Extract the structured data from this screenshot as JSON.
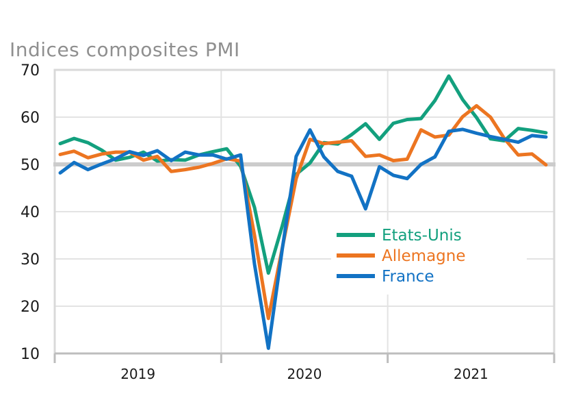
{
  "chart_data": {
    "type": "line",
    "title": "Indices composites PMI",
    "xlabel": "",
    "ylabel": "",
    "ylim": [
      10,
      70
    ],
    "yticks": [
      10,
      20,
      30,
      40,
      50,
      60,
      70
    ],
    "x_categories": [
      "2019",
      "2020",
      "2021"
    ],
    "months": [
      "2019-01",
      "2019-02",
      "2019-03",
      "2019-04",
      "2019-05",
      "2019-06",
      "2019-07",
      "2019-08",
      "2019-09",
      "2019-10",
      "2019-11",
      "2019-12",
      "2020-01",
      "2020-02",
      "2020-03",
      "2020-04",
      "2020-05",
      "2020-06",
      "2020-07",
      "2020-08",
      "2020-09",
      "2020-10",
      "2020-11",
      "2020-12",
      "2021-01",
      "2021-02",
      "2021-03",
      "2021-04",
      "2021-05",
      "2021-06",
      "2021-07",
      "2021-08",
      "2021-09",
      "2021-10",
      "2021-11",
      "2021-12"
    ],
    "reference_line": 50,
    "grid": true,
    "legend_position": "center-right",
    "series": [
      {
        "name": "Etats-Unis",
        "color": "#13a07e",
        "values": [
          54.4,
          55.5,
          54.6,
          53.0,
          50.9,
          51.5,
          52.6,
          50.7,
          51.0,
          50.9,
          52.0,
          52.7,
          53.3,
          49.6,
          40.9,
          27.0,
          37.0,
          47.9,
          50.3,
          54.6,
          54.3,
          56.3,
          58.6,
          55.3,
          58.7,
          59.5,
          59.7,
          63.5,
          68.7,
          63.7,
          59.9,
          55.4,
          55.0,
          57.6,
          57.2,
          56.7
        ]
      },
      {
        "name": "Allemagne",
        "color": "#ec7521",
        "values": [
          52.1,
          52.8,
          51.4,
          52.2,
          52.6,
          52.6,
          50.9,
          51.7,
          48.5,
          48.9,
          49.4,
          50.2,
          51.2,
          50.7,
          35.0,
          17.4,
          32.3,
          47.0,
          55.3,
          54.4,
          54.7,
          55.0,
          51.7,
          52.0,
          50.8,
          51.1,
          57.3,
          55.8,
          56.2,
          60.1,
          62.4,
          60.0,
          55.5,
          52.0,
          52.2,
          49.9
        ]
      },
      {
        "name": "France",
        "color": "#1272c4",
        "values": [
          48.2,
          50.4,
          48.9,
          50.1,
          51.2,
          52.7,
          51.9,
          52.9,
          50.8,
          52.6,
          52.0,
          52.0,
          51.1,
          52.0,
          28.9,
          11.1,
          32.1,
          51.7,
          57.3,
          51.6,
          48.5,
          47.5,
          40.6,
          49.5,
          47.7,
          47.0,
          50.0,
          51.6,
          57.0,
          57.4,
          56.6,
          55.9,
          55.3,
          54.7,
          56.1,
          55.8
        ]
      }
    ]
  }
}
